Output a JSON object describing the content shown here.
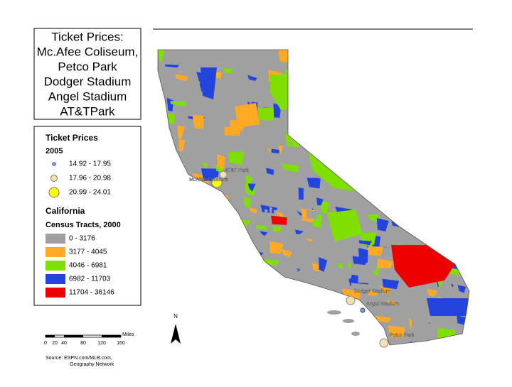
{
  "title_box": {
    "lines": [
      "Ticket Prices:",
      "Mc.Afee Coliseum,",
      "Petco Park",
      "Dodger Stadium",
      "Angel Stadium",
      "AT&TPark"
    ]
  },
  "legend": {
    "ticket_title": "Ticket Prices",
    "ticket_year": "2005",
    "ticket_items": [
      "14.92 - 17.95",
      "17.96 - 20.98",
      "20.99 - 24.01"
    ],
    "tracts_title": "California",
    "tracts_subtitle": "Census Tracts, 2000",
    "tract_items": [
      "0 - 3176",
      "3177 - 4045",
      "4046 - 6981",
      "6982 - 11703",
      "11704 - 36146"
    ]
  },
  "north": "N",
  "scale": {
    "ticks": [
      "0",
      "20",
      "40",
      "80",
      "120",
      "160"
    ],
    "unit": "Miles"
  },
  "source": [
    "Source: ESPN.com/MLB.com,",
    "Geography Network"
  ],
  "places": [
    "McAfee Coliseum",
    "AT&T Park",
    "Dodger Stadium",
    "Angel Stadium",
    "Petco Park"
  ]
}
